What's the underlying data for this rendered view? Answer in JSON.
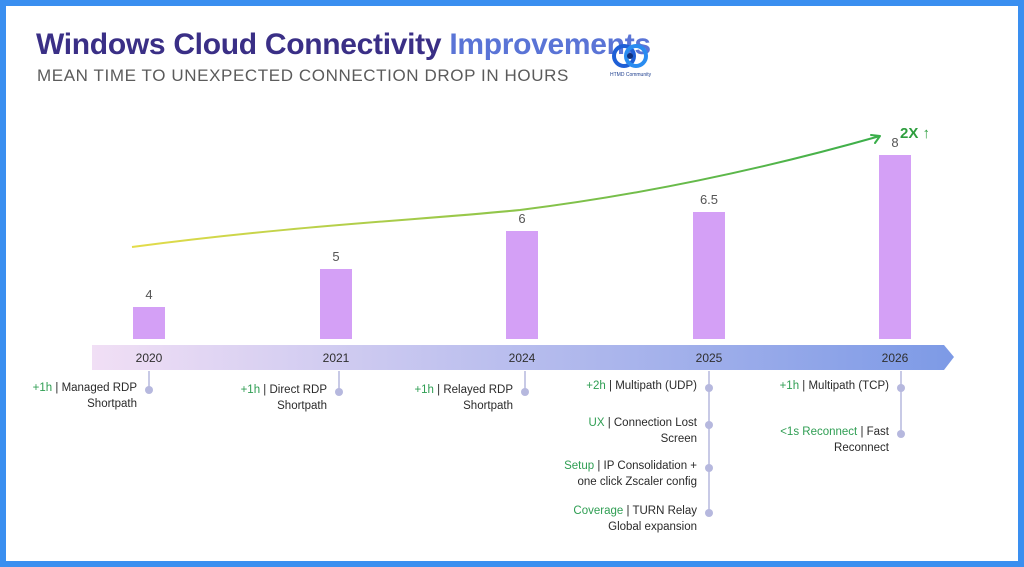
{
  "header": {
    "title_part1": "Windows Cloud Connectivity",
    "title_part2": "Improvements",
    "subtitle": "MEAN TIME TO UNEXPECTED CONNECTION DROP IN HOURS",
    "logo_text": "HTMD Community"
  },
  "chart_data": {
    "type": "bar",
    "title": "Windows Cloud Connectivity Improvements",
    "subtitle": "MEAN TIME TO UNEXPECTED CONNECTION DROP IN HOURS",
    "categories": [
      "2020",
      "2021",
      "2024",
      "2025",
      "2026"
    ],
    "values": [
      4,
      5,
      6,
      6.5,
      8
    ],
    "value_labels": [
      "4",
      "5",
      "6",
      "6.5",
      "8"
    ],
    "xlabel": "",
    "ylabel": "",
    "ylim": [
      0,
      8
    ],
    "trend_annotation": "2X ↑",
    "colors": {
      "bar": "#d4a0f6",
      "axis_start": "#f1dff5",
      "axis_end": "#7d9ae6",
      "trend_start": "#e4dc4a",
      "trend_end": "#3aae4a",
      "marker": "#b6b8de"
    }
  },
  "features": [
    {
      "year_index": 0,
      "tag": "+1h",
      "text": "| Managed RDP",
      "line2": "Shortpath"
    },
    {
      "year_index": 1,
      "tag": "+1h",
      "text": "| Direct RDP",
      "line2": "Shortpath"
    },
    {
      "year_index": 2,
      "tag": "+1h",
      "text": "| Relayed RDP",
      "line2": "Shortpath"
    },
    {
      "year_index": 3,
      "tag": "+2h",
      "text": "| Multipath (UDP)",
      "line2": ""
    },
    {
      "year_index": 3,
      "tag": "UX",
      "text": "| Connection Lost",
      "line2": "Screen"
    },
    {
      "year_index": 3,
      "tag": "Setup",
      "text": "| IP Consolidation +",
      "line2": "one click Zscaler config"
    },
    {
      "year_index": 3,
      "tag": "Coverage",
      "text": "| TURN Relay",
      "line2": "Global expansion"
    },
    {
      "year_index": 4,
      "tag": "+1h",
      "text": "| Multipath (TCP)",
      "line2": ""
    },
    {
      "year_index": 4,
      "tag": "<1s Reconnect",
      "text": "| Fast",
      "line2": "Reconnect"
    }
  ]
}
